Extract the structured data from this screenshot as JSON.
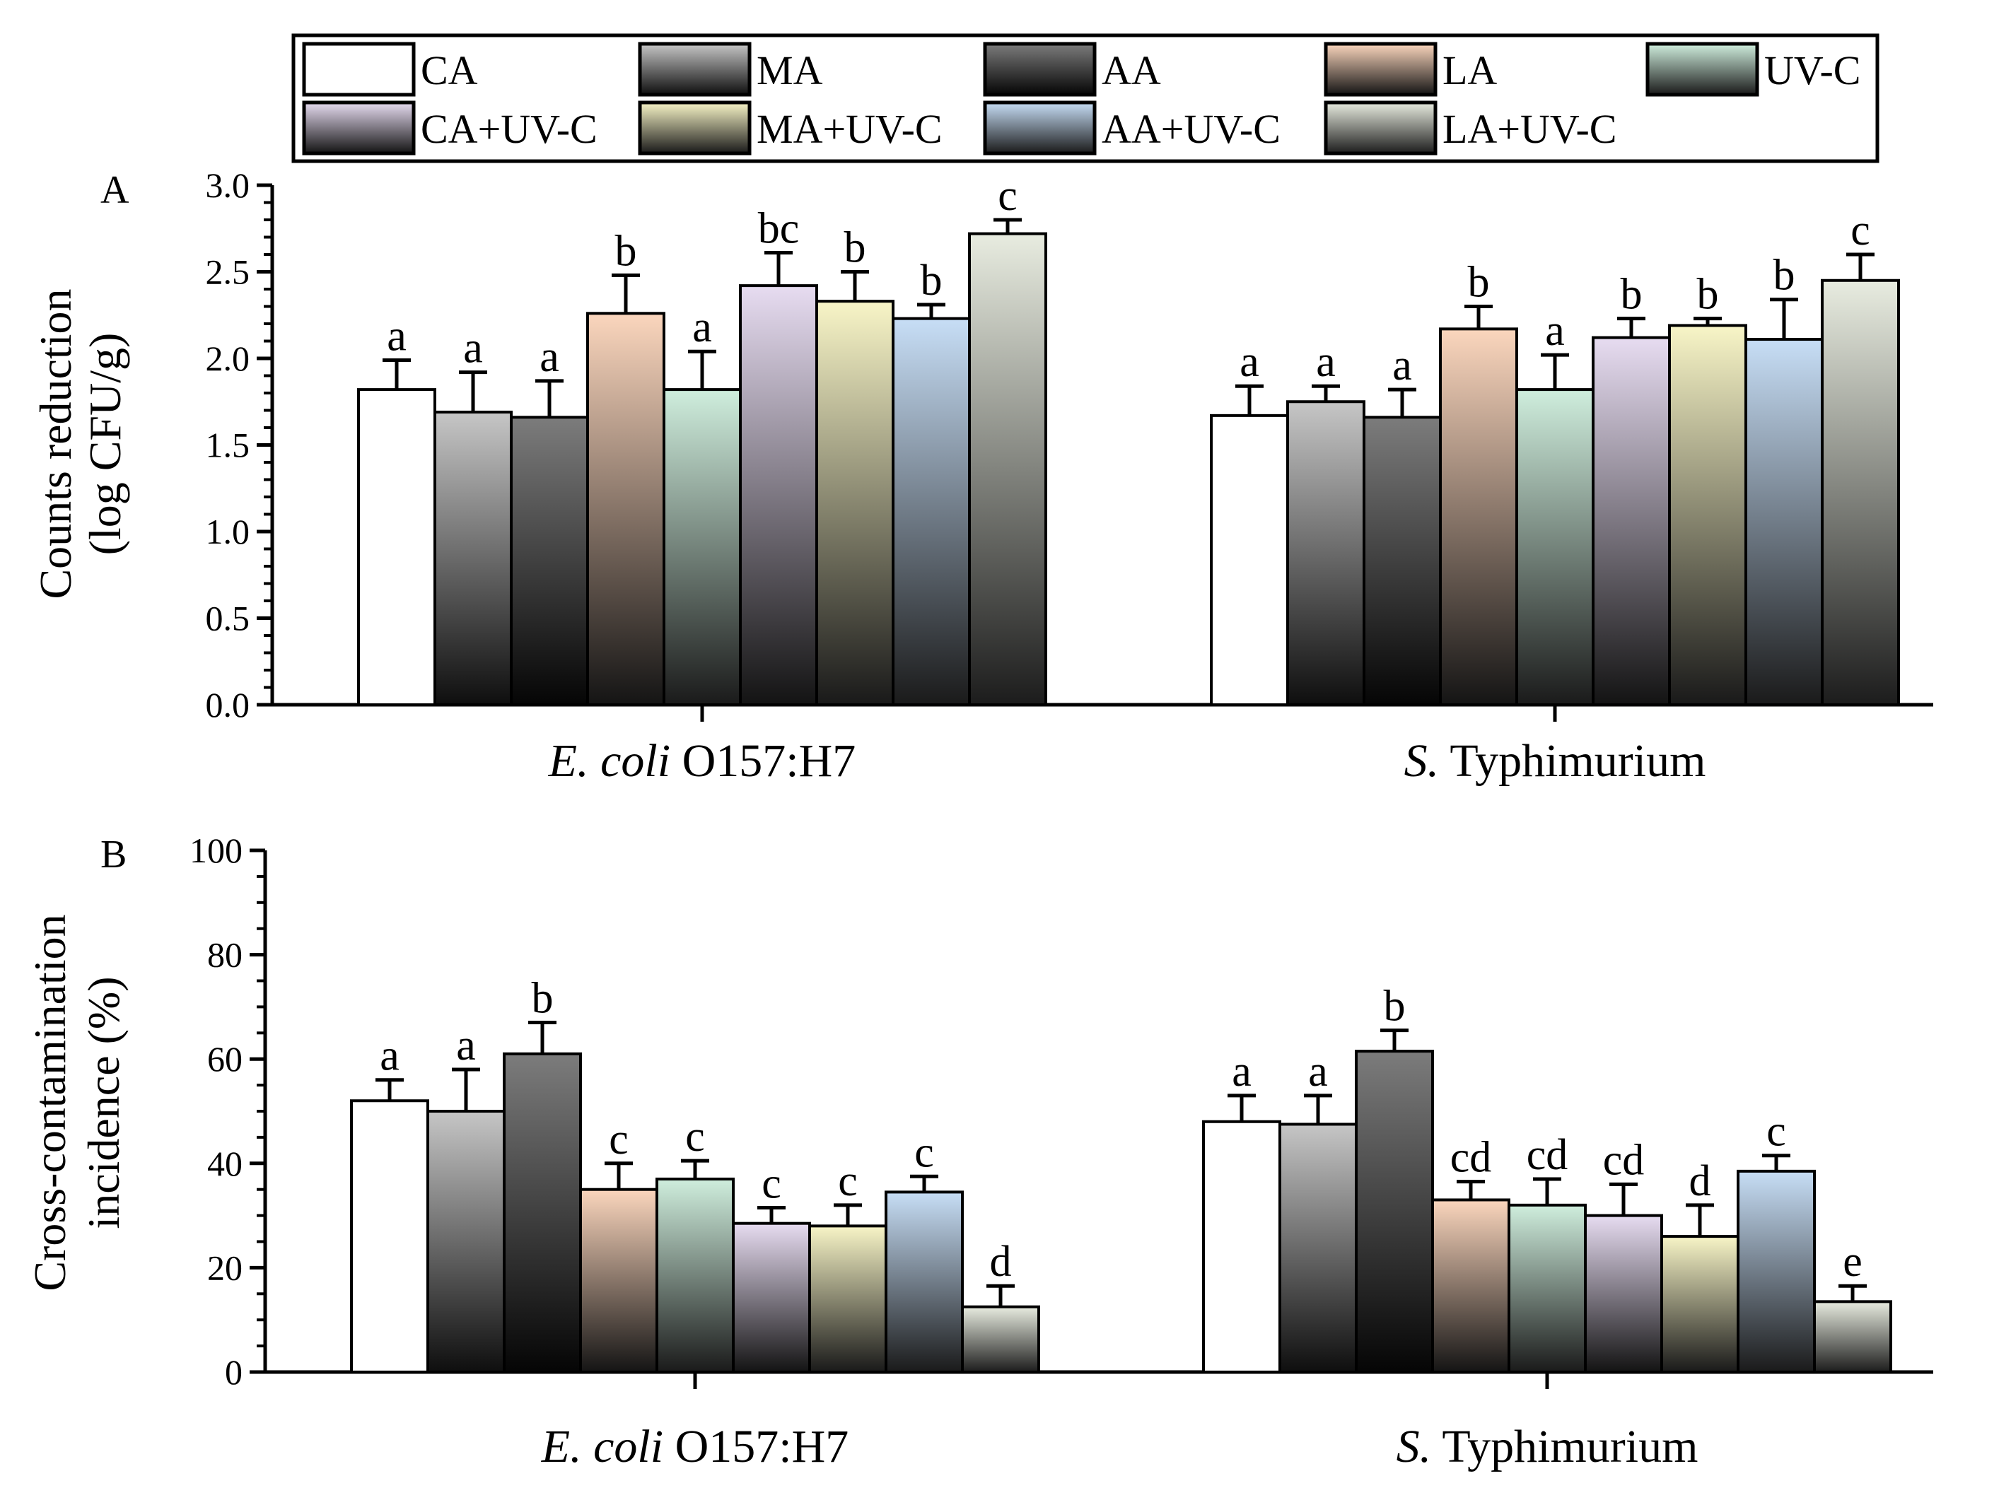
{
  "legend": [
    {
      "label": "CA",
      "top": "#ffffff",
      "bottom": "#ffffff"
    },
    {
      "label": "MA",
      "top": "#c6c6c6",
      "bottom": "#0e0e0e"
    },
    {
      "label": "AA",
      "top": "#7c7c7c",
      "bottom": "#050505"
    },
    {
      "label": "LA",
      "top": "#fbd6bd",
      "bottom": "#141414"
    },
    {
      "label": "UV-C",
      "top": "#cfeedd",
      "bottom": "#1a1a1a"
    },
    {
      "label": "CA+UV-C",
      "top": "#e7dcf1",
      "bottom": "#131313"
    },
    {
      "label": "MA+UV-C",
      "top": "#f8f5c7",
      "bottom": "#191919"
    },
    {
      "label": "AA+UV-C",
      "top": "#c7def6",
      "bottom": "#1a1a1a"
    },
    {
      "label": "LA+UV-C",
      "top": "#e8ece0",
      "bottom": "#1c1c1c"
    }
  ],
  "chart_data": [
    {
      "panel": "A",
      "type": "bar",
      "ylabel_lines": [
        "Counts reduction",
        "(log CFU/g)"
      ],
      "ylim": [
        0,
        3.0
      ],
      "yticks": [
        "0.0",
        "0.5",
        "1.0",
        "1.5",
        "2.0",
        "2.5",
        "3.0"
      ],
      "groups": [
        {
          "label_italic": "E. coli",
          "label_rest": " O157:H7",
          "values": [
            1.82,
            1.69,
            1.66,
            2.26,
            1.82,
            2.42,
            2.33,
            2.23,
            2.72
          ],
          "errors": [
            0.17,
            0.23,
            0.21,
            0.22,
            0.22,
            0.19,
            0.17,
            0.08,
            0.08
          ],
          "letters": [
            "a",
            "a",
            "a",
            "b",
            "a",
            "bc",
            "b",
            "b",
            "c"
          ]
        },
        {
          "label_italic": "S.",
          "label_rest": " Typhimurium",
          "values": [
            1.67,
            1.75,
            1.66,
            2.17,
            1.82,
            2.12,
            2.19,
            2.11,
            2.45
          ],
          "errors": [
            0.17,
            0.09,
            0.16,
            0.13,
            0.2,
            0.11,
            0.04,
            0.23,
            0.15
          ],
          "letters": [
            "a",
            "a",
            "a",
            "b",
            "a",
            "b",
            "b",
            "b",
            "c"
          ]
        }
      ]
    },
    {
      "panel": "B",
      "type": "bar",
      "ylabel_lines": [
        "Cross-contamination",
        "incidence (%)"
      ],
      "ylim": [
        0,
        100
      ],
      "yticks": [
        "0",
        "20",
        "40",
        "60",
        "80",
        "100"
      ],
      "groups": [
        {
          "label_italic": "E. coli",
          "label_rest": " O157:H7",
          "values": [
            52,
            50,
            61,
            35,
            37,
            28.5,
            28,
            34.5,
            12.5
          ],
          "errors": [
            4,
            8,
            6,
            5,
            3.5,
            3,
            4,
            3,
            4
          ],
          "letters": [
            "a",
            "a",
            "b",
            "c",
            "c",
            "c",
            "c",
            "c",
            "d"
          ]
        },
        {
          "label_italic": "S.",
          "label_rest": " Typhimurium",
          "values": [
            48,
            47.5,
            61.5,
            33,
            32,
            30,
            26,
            38.5,
            13.5
          ],
          "errors": [
            5,
            5.5,
            4,
            3.5,
            5,
            6,
            6,
            3,
            3
          ],
          "letters": [
            "a",
            "a",
            "b",
            "cd",
            "cd",
            "cd",
            "d",
            "c",
            "e"
          ]
        }
      ]
    }
  ]
}
